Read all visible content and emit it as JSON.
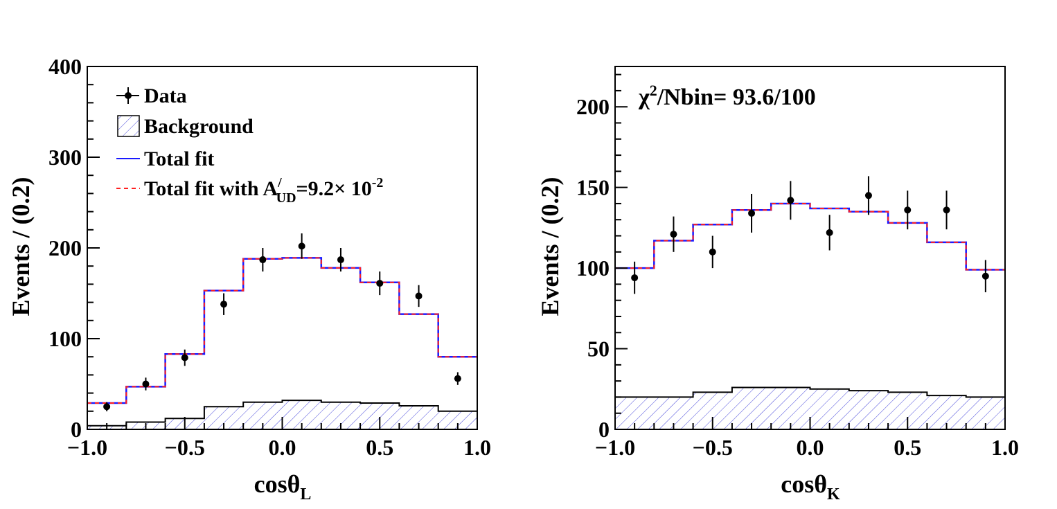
{
  "colors": {
    "frame": "#000000",
    "data": "#000000",
    "total_fit": "#1a1aff",
    "total_fit_alt": "#ff2020",
    "background_hatch": "#4a4adb"
  },
  "chart_data": [
    {
      "type": "histogram",
      "panel": "left",
      "xlabel_main": "cosθ",
      "xlabel_sub": "L",
      "ylabel": "Events / (0.2)",
      "xlim": [
        -1.0,
        1.0
      ],
      "ylim": [
        0,
        400
      ],
      "xticks": [
        -1.0,
        -0.5,
        0.0,
        0.5,
        1.0
      ],
      "xtick_labels": [
        "−1.0",
        "−0.5",
        "0.0",
        "0.5",
        "1.0"
      ],
      "yticks": [
        0,
        100,
        200,
        300,
        400
      ],
      "ytick_labels": [
        "0",
        "100",
        "200",
        "300",
        "400"
      ],
      "bin_edges": [
        -1.0,
        -0.8,
        -0.6,
        -0.4,
        -0.2,
        0.0,
        0.2,
        0.4,
        0.6,
        0.8,
        1.0
      ],
      "series": [
        {
          "name": "Data",
          "kind": "points",
          "x": [
            -0.9,
            -0.7,
            -0.5,
            -0.3,
            -0.1,
            0.1,
            0.3,
            0.5,
            0.7,
            0.9
          ],
          "y": [
            25,
            50,
            79,
            138,
            187,
            202,
            187,
            161,
            147,
            56
          ],
          "err": [
            5,
            7,
            9,
            12,
            13,
            14,
            13,
            13,
            12,
            7
          ]
        },
        {
          "name": "Background",
          "kind": "hatched-step",
          "values": [
            4,
            8,
            12,
            25,
            30,
            32,
            30,
            29,
            26,
            20
          ]
        },
        {
          "name": "Total fit",
          "kind": "step",
          "values": [
            29,
            47,
            83,
            153,
            188,
            189,
            178,
            162,
            127,
            80
          ]
        },
        {
          "name": "Total fit with A_UD'=9.2×10^-2",
          "kind": "dashed-step",
          "values": [
            29,
            47,
            83,
            153,
            188,
            189,
            178,
            162,
            127,
            80
          ]
        }
      ],
      "legend": {
        "placement": "top-left",
        "items": [
          {
            "label": "Data"
          },
          {
            "label": "Background"
          },
          {
            "label": "Total fit"
          },
          {
            "label_prefix": "Total fit with A",
            "label_sup": "/",
            "label_sub": "UD",
            "label_mid": "=9.2× 10",
            "label_exp": "-2"
          }
        ]
      }
    },
    {
      "type": "histogram",
      "panel": "right",
      "xlabel_main": "cosθ",
      "xlabel_sub": "K",
      "ylabel": "Events / (0.2)",
      "xlim": [
        -1.0,
        1.0
      ],
      "ylim": [
        0,
        225
      ],
      "xticks": [
        -1.0,
        -0.5,
        0.0,
        0.5,
        1.0
      ],
      "xtick_labels": [
        "−1.0",
        "−0.5",
        "0.0",
        "0.5",
        "1.0"
      ],
      "yticks": [
        0,
        50,
        100,
        150,
        200
      ],
      "ytick_labels": [
        "0",
        "50",
        "100",
        "150",
        "200"
      ],
      "bin_edges": [
        -1.0,
        -0.8,
        -0.6,
        -0.4,
        -0.2,
        0.0,
        0.2,
        0.4,
        0.6,
        0.8,
        1.0
      ],
      "annotation": {
        "chi_symbol": "χ",
        "chi_sup": "2",
        "text": "/Nbin= 93.6/100"
      },
      "series": [
        {
          "name": "Data",
          "kind": "points",
          "x": [
            -0.9,
            -0.7,
            -0.5,
            -0.3,
            -0.1,
            0.1,
            0.3,
            0.5,
            0.7,
            0.9
          ],
          "y": [
            94,
            121,
            110,
            134,
            142,
            122,
            145,
            136,
            136,
            95
          ],
          "err": [
            10,
            11,
            10,
            12,
            12,
            11,
            12,
            12,
            12,
            10
          ]
        },
        {
          "name": "Background",
          "kind": "hatched-step",
          "values": [
            20,
            20,
            23,
            26,
            26,
            25,
            24,
            23,
            21,
            20
          ]
        },
        {
          "name": "Total fit",
          "kind": "step",
          "values": [
            100,
            117,
            127,
            136,
            140,
            137,
            135,
            128,
            116,
            99
          ]
        },
        {
          "name": "Total fit alt",
          "kind": "dashed-step",
          "values": [
            100,
            117,
            127,
            136,
            140,
            137,
            135,
            128,
            116,
            99
          ]
        }
      ]
    }
  ]
}
